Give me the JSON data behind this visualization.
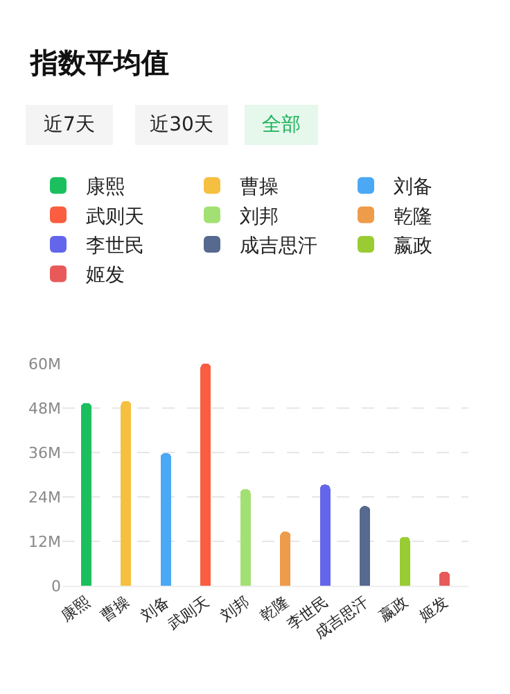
{
  "chart_data": {
    "type": "bar",
    "title": "指数平均值",
    "annotations": [
      "近7天",
      "近30天",
      "全部"
    ],
    "categories": [
      "康熙",
      "曹操",
      "刘备",
      "武则天",
      "刘邦",
      "乾隆",
      "李世民",
      "成吉思汗",
      "嬴政",
      "姬发"
    ],
    "stacked": true,
    "series": [
      {
        "name": "康熙",
        "color": "#1bbf5e",
        "values": [
          49.4,
          null,
          null,
          null,
          null,
          null,
          null,
          null,
          null,
          null
        ]
      },
      {
        "name": "曹操",
        "color": "#f5c040",
        "values": [
          null,
          49.9,
          null,
          null,
          null,
          null,
          null,
          null,
          null,
          null
        ]
      },
      {
        "name": "刘备",
        "color": "#4aa8f5",
        "values": [
          null,
          null,
          35.8,
          null,
          null,
          null,
          null,
          null,
          null,
          null
        ]
      },
      {
        "name": "武则天",
        "color": "#fa5d40",
        "values": [
          null,
          null,
          null,
          60,
          null,
          null,
          null,
          null,
          null,
          null
        ]
      },
      {
        "name": "刘邦",
        "color": "#a3e073",
        "values": [
          null,
          null,
          null,
          null,
          26.1,
          null,
          null,
          null,
          null,
          null
        ]
      },
      {
        "name": "乾隆",
        "color": "#ee9b4a",
        "values": [
          null,
          null,
          null,
          null,
          null,
          14.6,
          null,
          null,
          null,
          null
        ]
      },
      {
        "name": "李世民",
        "color": "#6366ea",
        "values": [
          null,
          null,
          null,
          null,
          null,
          null,
          27.3,
          null,
          null,
          null
        ]
      },
      {
        "name": "成吉思汗",
        "color": "#56698f",
        "values": [
          null,
          null,
          null,
          null,
          null,
          null,
          null,
          21.5,
          null,
          null
        ]
      },
      {
        "name": "嬴政",
        "color": "#99cc33",
        "values": [
          null,
          null,
          null,
          null,
          null,
          null,
          null,
          null,
          13.2,
          null
        ]
      },
      {
        "name": "姬发",
        "color": "#e85a5a",
        "values": [
          null,
          null,
          null,
          null,
          null,
          null,
          null,
          null,
          null,
          3.8
        ]
      }
    ],
    "ylim": [
      0,
      60
    ],
    "yticks": [
      0,
      {
        "value": 12,
        "label": "12M"
      },
      {
        "value": 24,
        "label": "24M"
      },
      {
        "value": 36,
        "label": "36M"
      },
      {
        "value": 48,
        "label": "48M"
      },
      {
        "value": 60,
        "label": "60M"
      }
    ],
    "grid": "y",
    "legend": "top"
  }
}
